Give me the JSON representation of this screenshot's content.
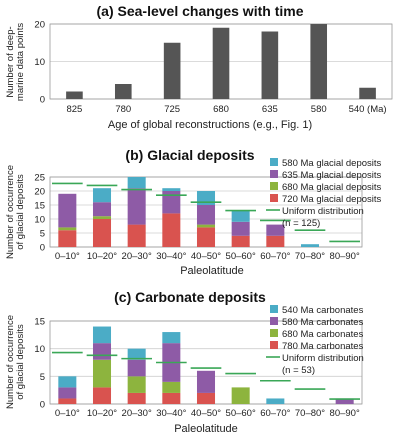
{
  "chart_data": [
    {
      "type": "bar",
      "title": "(a) Sea-level changes with time",
      "categories": [
        "825",
        "780",
        "725",
        "680",
        "635",
        "580",
        "540 (Ma)"
      ],
      "values": [
        2,
        4,
        15,
        19,
        18,
        20,
        3
      ],
      "xlabel": "Age of global reconstructions (e.g., Fig. 1)",
      "ylabel": [
        "Number of deep-",
        "marine data points"
      ],
      "ylim": [
        0,
        20
      ],
      "yticks": [
        "0",
        "10",
        "20"
      ],
      "color": "#555555",
      "grid": true
    },
    {
      "type": "bar",
      "stacked": true,
      "title": "(b) Glacial deposits",
      "categories": [
        "0–10°",
        "10–20°",
        "20–30°",
        "30–40°",
        "40–50°",
        "50–60°",
        "60–70°",
        "70–80°",
        "80–90°"
      ],
      "series": [
        {
          "name": "720 Ma glacial deposits",
          "color": "#d9534f",
          "values": [
            6,
            10,
            8,
            12,
            7,
            4,
            4,
            0,
            0
          ]
        },
        {
          "name": "680 Ma glacial deposits",
          "color": "#8db43e",
          "values": [
            1,
            1,
            0,
            0,
            1,
            0,
            0,
            0,
            0
          ]
        },
        {
          "name": "635 Ma glacial deposits",
          "color": "#8e5ba6",
          "values": [
            12,
            5,
            13,
            8,
            7,
            5,
            4,
            0,
            0
          ]
        },
        {
          "name": "580 Ma glacial deposits",
          "color": "#4bacc6",
          "values": [
            0,
            5,
            4,
            1,
            5,
            4,
            0,
            1,
            0
          ]
        }
      ],
      "uniform": {
        "name": "Uniform distribution",
        "note": "(n = 125)",
        "color": "#3aa757",
        "values": [
          22.7,
          22,
          20.5,
          18.5,
          16,
          13,
          9.5,
          6,
          2
        ]
      },
      "xlabel": "Paleolatitude",
      "ylabel": [
        "Number of occurrence",
        "of glacial deposits"
      ],
      "ylim": [
        0,
        25
      ],
      "yticks": [
        "0",
        "5",
        "10",
        "15",
        "20",
        "25"
      ],
      "grid": true
    },
    {
      "type": "bar",
      "stacked": true,
      "title": "(c) Carbonate deposits",
      "categories": [
        "0–10°",
        "10–20°",
        "20–30°",
        "30–40°",
        "40–50°",
        "50–60°",
        "60–70°",
        "70–80°",
        "80–90°"
      ],
      "series": [
        {
          "name": "780 Ma carbonates",
          "color": "#d9534f",
          "values": [
            1,
            3,
            2,
            2,
            2,
            0,
            0,
            0,
            0
          ]
        },
        {
          "name": "680 Ma carbonates",
          "color": "#8db43e",
          "values": [
            0,
            5,
            3,
            2,
            0,
            3,
            0,
            0,
            0
          ]
        },
        {
          "name": "580 Ma carbonates",
          "color": "#8e5ba6",
          "values": [
            2,
            3,
            3,
            7,
            4,
            0,
            0,
            0,
            1
          ]
        },
        {
          "name": "540 Ma carbonates",
          "color": "#4bacc6",
          "values": [
            2,
            3,
            2,
            2,
            0,
            0,
            1,
            0,
            0
          ]
        }
      ],
      "uniform": {
        "name": "Uniform distribution",
        "note": "(n = 53)",
        "color": "#3aa757",
        "values": [
          9.3,
          8.8,
          8.2,
          7.5,
          6.5,
          5.5,
          4.2,
          2.7,
          0.9
        ]
      },
      "xlabel": "Paleolatitude",
      "ylabel": [
        "Number of occurrence",
        "of glacial deposits"
      ],
      "ylim": [
        0,
        15
      ],
      "yticks": [
        "0",
        "5",
        "10",
        "15"
      ],
      "grid": true
    }
  ]
}
